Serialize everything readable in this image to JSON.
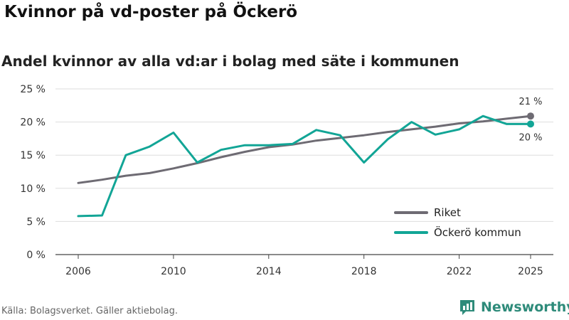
{
  "header": {
    "title": "Kvinnor på vd-poster på Öckerö",
    "subtitle": "Andel kvinnor av alla vd:ar i bolag med säte i kommunen"
  },
  "footer": {
    "source": "Källa: Bolagsverket. Gäller aktiebolag.",
    "brand": "Newsworthy",
    "brand_icon": "newsworthy-logo-icon"
  },
  "chart_data": {
    "type": "line",
    "title": "Kvinnor på vd-poster på Öckerö",
    "subtitle": "Andel kvinnor av alla vd:ar i bolag med säte i kommunen",
    "xlabel": "",
    "ylabel": "",
    "x": [
      2006,
      2007,
      2008,
      2009,
      2010,
      2011,
      2012,
      2013,
      2014,
      2015,
      2016,
      2017,
      2018,
      2019,
      2020,
      2021,
      2022,
      2023,
      2024,
      2025
    ],
    "xlim": [
      2006,
      2025
    ],
    "ylim": [
      0,
      25
    ],
    "x_ticks": [
      2006,
      2010,
      2014,
      2018,
      2022,
      2025
    ],
    "x_tick_labels": [
      "2006",
      "2010",
      "2014",
      "2018",
      "2022",
      "2025"
    ],
    "y_ticks": [
      0,
      5,
      10,
      15,
      20,
      25
    ],
    "y_tick_labels": [
      "0 %",
      "5 %",
      "10 %",
      "15 %",
      "20 %",
      "25 %"
    ],
    "grid": true,
    "legend_position": "bottom-right",
    "series": [
      {
        "name": "Riket",
        "color": "#6e6b73",
        "values": [
          10.8,
          11.3,
          11.9,
          12.3,
          13.0,
          13.8,
          14.7,
          15.5,
          16.2,
          16.6,
          17.2,
          17.6,
          18.0,
          18.5,
          18.9,
          19.3,
          19.8,
          20.1,
          20.5,
          20.9
        ],
        "end_label": "21 %"
      },
      {
        "name": "Öckerö kommun",
        "color": "#12a596",
        "values": [
          5.8,
          5.9,
          15.0,
          16.3,
          18.4,
          13.9,
          15.8,
          16.5,
          16.5,
          16.7,
          18.8,
          18.0,
          13.9,
          17.4,
          20.0,
          18.1,
          18.9,
          20.9,
          19.7,
          19.7
        ],
        "end_label": "20 %"
      }
    ]
  }
}
